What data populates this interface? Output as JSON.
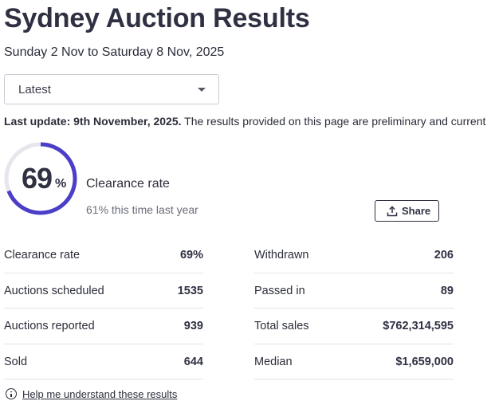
{
  "header": {
    "title": "Sydney Auction Results",
    "date_range": "Sunday 2 Nov to Saturday 8 Nov, 2025"
  },
  "filter": {
    "selected": "Latest"
  },
  "notice": {
    "bold": "Last update: 9th November, 2025.",
    "text": " The results provided on this page are preliminary and current"
  },
  "clearance": {
    "value": 69,
    "value_text": "69",
    "percent_sign": "%",
    "label": "Clearance rate",
    "last_year": "61% this time last year",
    "ring_color": "#4b3ec7",
    "track_color": "#e6e6ec"
  },
  "share": {
    "label": "Share"
  },
  "stats_left": [
    {
      "label": "Clearance rate",
      "value": "69%"
    },
    {
      "label": "Auctions scheduled",
      "value": "1535"
    },
    {
      "label": "Auctions reported",
      "value": "939"
    },
    {
      "label": "Sold",
      "value": "644"
    }
  ],
  "stats_right": [
    {
      "label": "Withdrawn",
      "value": "206"
    },
    {
      "label": "Passed in",
      "value": "89"
    },
    {
      "label": "Total sales",
      "value": "$762,314,595"
    },
    {
      "label": "Median",
      "value": "$1,659,000"
    }
  ],
  "help": {
    "label": "Help me understand these results",
    "icon": "info-icon"
  }
}
